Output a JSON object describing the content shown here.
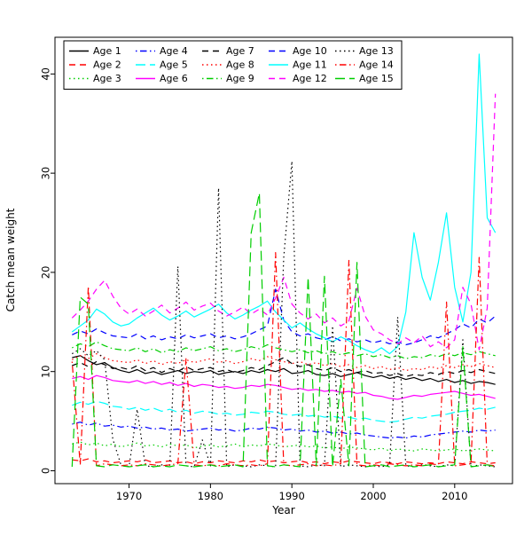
{
  "chart_data": {
    "type": "line",
    "xlabel": "Year",
    "ylabel": "Catch mean weight",
    "x_range": [
      1963,
      2015
    ],
    "xticks": [
      1970,
      1980,
      1990,
      2000,
      2010
    ],
    "yticks": [
      0,
      10,
      20,
      30,
      40
    ],
    "ylim": [
      0,
      42
    ],
    "grid": false,
    "legend_position": "top-left",
    "legend_columns": 5,
    "years": [
      1963,
      1964,
      1965,
      1966,
      1967,
      1968,
      1969,
      1970,
      1971,
      1972,
      1973,
      1974,
      1975,
      1976,
      1977,
      1978,
      1979,
      1980,
      1981,
      1982,
      1983,
      1984,
      1985,
      1986,
      1987,
      1988,
      1989,
      1990,
      1991,
      1992,
      1993,
      1994,
      1995,
      1996,
      1997,
      1998,
      1999,
      2000,
      2001,
      2002,
      2003,
      2004,
      2005,
      2006,
      2007,
      2008,
      2009,
      2010,
      2011,
      2012,
      2013,
      2014,
      2015
    ],
    "series": [
      {
        "name": "Age 1",
        "color": "#000000",
        "linestyle": "solid",
        "values": [
          11.4,
          11.6,
          11.1,
          10.7,
          10.9,
          10.4,
          10.1,
          9.9,
          10.2,
          9.8,
          10.0,
          9.7,
          9.9,
          10.1,
          9.8,
          10.0,
          9.9,
          10.1,
          9.7,
          9.9,
          10.0,
          9.8,
          10.1,
          9.9,
          10.2,
          10.0,
          10.3,
          9.8,
          9.9,
          10.1,
          9.7,
          9.6,
          9.8,
          9.5,
          9.7,
          9.9,
          9.6,
          9.4,
          9.6,
          9.3,
          9.5,
          9.2,
          9.4,
          9.1,
          9.3,
          9.0,
          9.2,
          8.9,
          9.1,
          8.8,
          9.0,
          8.9,
          8.7
        ]
      },
      {
        "name": "Age 2",
        "color": "#FF0000",
        "linestyle": "dashed",
        "values": [
          1.1,
          1.0,
          1.2,
          0.9,
          1.0,
          0.8,
          0.9,
          1.0,
          0.9,
          1.1,
          0.8,
          0.9,
          1.0,
          0.8,
          0.9,
          0.7,
          0.9,
          0.8,
          1.0,
          0.9,
          0.8,
          1.0,
          0.9,
          1.1,
          0.9,
          1.0,
          0.8,
          0.9,
          1.0,
          0.8,
          0.9,
          0.7,
          0.9,
          0.8,
          1.0,
          0.9,
          0.8,
          0.7,
          0.9,
          0.8,
          0.7,
          0.9,
          0.8,
          0.7,
          0.8,
          0.7,
          0.9,
          0.8,
          0.7,
          0.9,
          0.8,
          0.7,
          0.8
        ]
      },
      {
        "name": "Age 3",
        "color": "#00CD00",
        "linestyle": "dotted",
        "values": [
          2.7,
          2.9,
          2.6,
          2.8,
          2.5,
          2.7,
          2.4,
          2.6,
          2.8,
          2.5,
          2.6,
          2.4,
          2.7,
          2.5,
          2.6,
          2.3,
          2.5,
          2.6,
          2.4,
          2.5,
          2.7,
          2.4,
          2.6,
          2.5,
          2.7,
          2.6,
          2.4,
          2.5,
          2.6,
          2.4,
          2.5,
          2.3,
          2.4,
          2.2,
          2.4,
          2.3,
          2.2,
          2.1,
          2.3,
          2.0,
          2.2,
          2.1,
          2.0,
          2.2,
          2.1,
          2.0,
          2.1,
          2.2,
          2.0,
          2.1,
          2.2,
          2.1,
          2.0
        ]
      },
      {
        "name": "Age 4",
        "color": "#0000FF",
        "linestyle": "dashdot",
        "values": [
          4.7,
          4.9,
          4.6,
          4.8,
          4.5,
          4.6,
          4.4,
          4.5,
          4.3,
          4.4,
          4.2,
          4.3,
          4.1,
          4.2,
          4.0,
          4.1,
          4.2,
          4.3,
          4.1,
          4.2,
          4.0,
          4.1,
          4.3,
          4.2,
          4.4,
          4.3,
          4.1,
          4.2,
          4.0,
          4.1,
          3.9,
          4.0,
          3.8,
          3.9,
          3.7,
          3.8,
          3.6,
          3.5,
          3.4,
          3.3,
          3.4,
          3.3,
          3.5,
          3.4,
          3.6,
          3.7,
          3.8,
          3.9,
          4.0,
          3.9,
          4.1,
          4.0,
          4.1
        ]
      },
      {
        "name": "Age 5",
        "color": "#00FFFF",
        "linestyle": "longdash",
        "values": [
          6.6,
          6.9,
          6.7,
          7.0,
          6.8,
          6.5,
          6.4,
          6.2,
          6.4,
          6.1,
          6.3,
          6.0,
          6.2,
          5.9,
          6.1,
          5.8,
          6.0,
          5.9,
          5.7,
          5.8,
          5.6,
          5.7,
          5.9,
          5.8,
          6.0,
          5.9,
          5.7,
          5.6,
          5.7,
          5.5,
          5.6,
          5.4,
          5.5,
          5.3,
          5.4,
          5.2,
          5.3,
          5.1,
          5.0,
          4.9,
          5.0,
          5.2,
          5.4,
          5.3,
          5.5,
          5.6,
          5.7,
          5.9,
          6.0,
          6.1,
          6.3,
          6.2,
          6.4
        ]
      },
      {
        "name": "Age 6",
        "color": "#FF00FF",
        "linestyle": "solid",
        "values": [
          9.3,
          9.5,
          9.2,
          9.6,
          9.4,
          9.1,
          9.0,
          8.9,
          9.1,
          8.8,
          9.0,
          8.7,
          8.9,
          8.6,
          8.8,
          8.5,
          8.7,
          8.6,
          8.4,
          8.5,
          8.3,
          8.4,
          8.6,
          8.5,
          8.7,
          8.6,
          8.4,
          8.2,
          8.3,
          8.1,
          8.2,
          8.0,
          8.1,
          7.9,
          8.0,
          7.8,
          7.9,
          7.6,
          7.5,
          7.3,
          7.2,
          7.4,
          7.6,
          7.5,
          7.7,
          7.8,
          7.9,
          8.0,
          7.8,
          7.6,
          7.7,
          7.5,
          7.3
        ]
      },
      {
        "name": "Age 7",
        "color": "#000000",
        "linestyle": "dashed",
        "values": [
          10.6,
          10.9,
          10.5,
          11.0,
          10.7,
          10.3,
          10.4,
          10.2,
          10.6,
          10.1,
          10.4,
          9.9,
          10.3,
          10.0,
          10.5,
          10.1,
          10.3,
          10.4,
          10.0,
          10.2,
          9.9,
          10.1,
          10.4,
          10.2,
          10.6,
          11.0,
          11.4,
          10.8,
          10.5,
          10.7,
          10.3,
          10.1,
          10.4,
          10.0,
          10.2,
          9.9,
          10.1,
          9.8,
          9.9,
          9.6,
          9.8,
          9.5,
          9.7,
          9.6,
          9.9,
          9.7,
          10.0,
          9.8,
          10.1,
          9.9,
          10.2,
          10.0,
          9.8
        ]
      },
      {
        "name": "Age 8",
        "color": "#FF0000",
        "linestyle": "dotted",
        "values": [
          11.2,
          11.6,
          11.3,
          11.8,
          11.4,
          11.1,
          11.0,
          10.9,
          11.2,
          10.8,
          11.1,
          10.7,
          11.0,
          10.8,
          11.2,
          10.9,
          11.1,
          11.3,
          10.9,
          11.1,
          10.8,
          11.0,
          11.3,
          11.1,
          11.5,
          11.2,
          11.0,
          10.8,
          11.0,
          10.7,
          10.9,
          10.6,
          10.8,
          10.5,
          10.7,
          10.4,
          10.6,
          10.3,
          10.5,
          10.2,
          10.4,
          10.1,
          10.3,
          10.2,
          10.5,
          10.3,
          10.6,
          10.4,
          10.7,
          10.5,
          10.8,
          10.6,
          10.4
        ]
      },
      {
        "name": "Age 9",
        "color": "#00CD00",
        "linestyle": "dashdot",
        "values": [
          12.4,
          12.8,
          12.5,
          13.0,
          12.6,
          12.3,
          12.2,
          12.1,
          12.4,
          12.0,
          12.3,
          11.9,
          12.2,
          12.0,
          12.4,
          12.1,
          12.3,
          12.5,
          12.1,
          12.3,
          12.0,
          12.2,
          12.5,
          12.3,
          12.7,
          12.4,
          12.2,
          12.0,
          12.2,
          11.9,
          12.1,
          11.8,
          12.0,
          11.7,
          11.9,
          11.6,
          11.8,
          11.5,
          11.7,
          11.4,
          11.6,
          11.3,
          11.5,
          11.4,
          11.7,
          11.5,
          11.8,
          11.6,
          11.9,
          11.7,
          12.0,
          11.8,
          11.6
        ]
      },
      {
        "name": "Age 10",
        "color": "#0000FF",
        "linestyle": "dashed",
        "values": [
          13.7,
          14.1,
          13.8,
          14.3,
          13.9,
          13.6,
          13.5,
          13.4,
          13.8,
          13.3,
          13.6,
          13.2,
          13.5,
          13.3,
          13.7,
          13.4,
          13.6,
          13.8,
          13.4,
          13.6,
          13.3,
          13.5,
          13.8,
          14.2,
          14.6,
          18.3,
          15.2,
          14.0,
          13.6,
          13.8,
          13.4,
          13.2,
          13.5,
          13.1,
          13.3,
          13.0,
          13.2,
          12.9,
          13.1,
          12.8,
          13.0,
          12.7,
          12.9,
          13.2,
          13.6,
          13.4,
          13.8,
          14.2,
          14.8,
          14.4,
          15.3,
          14.9,
          15.6
        ]
      },
      {
        "name": "Age 11",
        "color": "#00FFFF",
        "linestyle": "solid",
        "values": [
          14.0,
          14.6,
          15.2,
          16.3,
          15.8,
          15.0,
          14.6,
          14.8,
          15.4,
          15.9,
          16.4,
          15.7,
          15.2,
          15.6,
          16.1,
          15.5,
          15.9,
          16.3,
          16.8,
          15.9,
          15.3,
          15.7,
          16.2,
          16.6,
          17.1,
          16.0,
          15.2,
          14.4,
          14.9,
          14.3,
          13.8,
          13.4,
          13.0,
          13.5,
          13.1,
          12.6,
          12.2,
          11.9,
          12.4,
          11.8,
          12.5,
          16.0,
          24.0,
          19.5,
          17.2,
          21.0,
          26.0,
          18.5,
          15.0,
          20.0,
          42.0,
          25.5,
          24.0
        ]
      },
      {
        "name": "Age 12",
        "color": "#FF00FF",
        "linestyle": "dashed",
        "values": [
          15.4,
          16.2,
          17.1,
          18.3,
          19.2,
          17.6,
          16.4,
          15.8,
          16.3,
          15.6,
          16.1,
          16.7,
          15.9,
          16.4,
          17.0,
          16.2,
          16.6,
          16.9,
          16.1,
          15.6,
          16.0,
          16.5,
          15.8,
          16.3,
          15.7,
          17.4,
          19.5,
          16.8,
          15.9,
          15.3,
          15.8,
          14.9,
          15.4,
          14.6,
          15.1,
          18.4,
          15.6,
          14.2,
          13.8,
          13.2,
          12.8,
          13.4,
          12.9,
          13.6,
          12.5,
          13.0,
          12.4,
          13.2,
          18.5,
          16.8,
          12.2,
          16.4,
          38.0
        ]
      },
      {
        "name": "Age 13",
        "color": "#000000",
        "linestyle": "dotted",
        "values": [
          11.8,
          12.3,
          11.6,
          12.1,
          11.2,
          3.2,
          0.6,
          0.4,
          6.2,
          0.5,
          0.4,
          0.6,
          0.5,
          20.6,
          0.5,
          0.4,
          3.1,
          0.5,
          28.5,
          0.4,
          0.6,
          0.5,
          0.4,
          0.6,
          0.5,
          0.4,
          21.5,
          31.2,
          0.5,
          0.4,
          0.6,
          0.5,
          14.6,
          0.4,
          0.6,
          0.5,
          0.4,
          0.5,
          0.4,
          0.6,
          15.5,
          0.5,
          0.4,
          0.6,
          0.5,
          0.4,
          0.6,
          0.5,
          13.2,
          0.4,
          0.6,
          0.5,
          0.4
        ]
      },
      {
        "name": "Age 14",
        "color": "#FF0000",
        "linestyle": "dashdot",
        "values": [
          11.0,
          0.6,
          18.6,
          0.5,
          0.7,
          0.6,
          0.5,
          0.6,
          0.5,
          0.7,
          0.6,
          0.5,
          0.6,
          0.7,
          11.3,
          0.6,
          0.5,
          0.6,
          0.5,
          0.7,
          0.6,
          0.5,
          0.6,
          0.5,
          0.7,
          22.0,
          0.6,
          0.5,
          0.6,
          0.7,
          0.5,
          0.6,
          0.5,
          0.7,
          21.2,
          0.6,
          0.5,
          0.6,
          0.5,
          0.7,
          0.6,
          0.5,
          0.6,
          0.5,
          0.7,
          0.6,
          17.0,
          0.5,
          0.6,
          0.7,
          21.5,
          0.6,
          0.5
        ]
      },
      {
        "name": "Age 15",
        "color": "#00CD00",
        "linestyle": "longdash",
        "values": [
          0.4,
          17.5,
          16.8,
          0.5,
          0.4,
          0.6,
          0.5,
          0.4,
          0.5,
          0.6,
          0.4,
          0.5,
          0.4,
          0.6,
          0.5,
          0.4,
          0.5,
          0.6,
          0.4,
          0.5,
          0.6,
          0.4,
          24.0,
          28.0,
          0.5,
          0.4,
          0.6,
          0.5,
          0.4,
          19.5,
          0.5,
          19.6,
          0.4,
          9.2,
          0.5,
          21.0,
          0.4,
          0.5,
          0.6,
          0.4,
          0.5,
          0.6,
          0.4,
          0.5,
          0.6,
          0.4,
          0.5,
          0.6,
          12.5,
          0.4,
          0.5,
          0.6,
          0.4
        ]
      }
    ]
  }
}
